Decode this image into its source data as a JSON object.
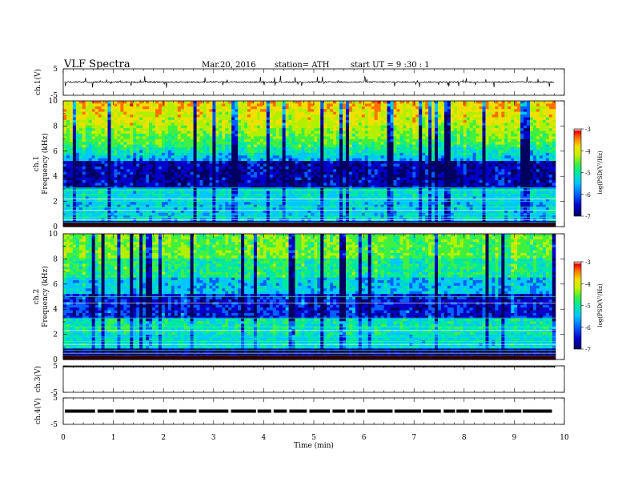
{
  "header": {
    "title": "VLF  Spectra",
    "date": "Mar.20, 2016",
    "station": "station= ATH",
    "start": "start  UT  =   9  :30 : 1"
  },
  "colors": {
    "spectrogram_scale": [
      "#000060",
      "#0000c8",
      "#0060ff",
      "#00c8ff",
      "#00e8a0",
      "#40f040",
      "#b0f000",
      "#f0e000",
      "#ff7000",
      "#e80000"
    ],
    "trace": "#000000"
  },
  "chart_data": [
    {
      "type": "line",
      "name": "ch1-panel",
      "ylabel": "ch.1(V)",
      "ylim": [
        -5,
        5
      ],
      "yticks": [
        "5",
        "-5"
      ],
      "xlim": [
        0,
        10
      ],
      "baseline": 0,
      "noise_amplitude": 0.5
    },
    {
      "type": "heatmap",
      "name": "ch1-spectrogram",
      "ylabel_channel": "ch.1",
      "ylabel": "Frequency  (kHz)",
      "ylim": [
        0,
        10
      ],
      "yticks": [
        "0",
        "2",
        "4",
        "6",
        "8",
        "10"
      ],
      "xlim": [
        0,
        10
      ],
      "colorbar": {
        "label": "log(PSD(V²/Hz)",
        "range": [
          -7,
          -3
        ],
        "ticks": [
          "-3",
          "-4",
          "-5",
          "-6",
          "-7"
        ]
      }
    },
    {
      "type": "heatmap",
      "name": "ch2-spectrogram",
      "ylabel_channel": "ch.2",
      "ylabel": "Frequency  (kHz)",
      "ylim": [
        0,
        10
      ],
      "yticks": [
        "0",
        "2",
        "4",
        "6",
        "8",
        "10"
      ],
      "xlim": [
        0,
        10
      ],
      "colorbar": {
        "label": "log(PSD(V²/Hz)",
        "range": [
          -7,
          -3
        ],
        "ticks": [
          "-3",
          "-4",
          "-5",
          "-6",
          "-7"
        ]
      }
    },
    {
      "type": "line",
      "name": "ch3-panel",
      "ylabel": "ch.3(V)",
      "ylim": [
        -5,
        5
      ],
      "yticks": [
        "5",
        "-5"
      ],
      "xlim": [
        0,
        10
      ],
      "baseline": 5
    },
    {
      "type": "line",
      "name": "ch4-panel",
      "ylabel": "ch.4(V)",
      "ylim": [
        -5,
        5
      ],
      "yticks": [
        "5",
        "-5"
      ],
      "xlim": [
        0,
        10
      ],
      "baseline": 0
    }
  ],
  "xaxis": {
    "label": "Time  (min)",
    "ticks": [
      "0",
      "1",
      "2",
      "3",
      "4",
      "5",
      "6",
      "7",
      "8",
      "9",
      "10"
    ],
    "data_end": 9.82
  }
}
